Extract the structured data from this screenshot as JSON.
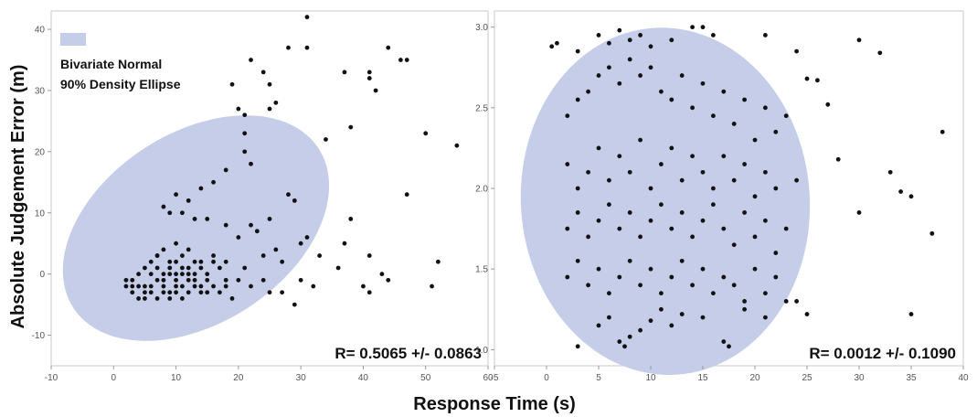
{
  "figure": {
    "ylabel": "Absolute Judgement Error (m)",
    "xlabel": "Response Time (s)",
    "legend": {
      "line1": "Bivariate Normal",
      "line2": "90% Density Ellipse",
      "color": "#c5cde8"
    }
  },
  "chart_data": [
    {
      "type": "scatter",
      "panel": "left",
      "xlim": [
        -10,
        60
      ],
      "ylim": [
        -15,
        43
      ],
      "xticks": [
        -10,
        0,
        10,
        20,
        30,
        40,
        50,
        60
      ],
      "yticks": [
        -10,
        0,
        10,
        20,
        30,
        40
      ],
      "annotation": "R= 0.5065 +/- 0.0863",
      "ellipse": {
        "label": "Bivariate Normal 90% Density Ellipse",
        "color": "#c5cde8"
      },
      "point_color": "#111111",
      "grid": false,
      "points": [
        [
          31,
          42
        ],
        [
          28,
          37
        ],
        [
          31,
          37
        ],
        [
          44,
          37
        ],
        [
          46,
          35
        ],
        [
          47,
          35
        ],
        [
          22,
          35
        ],
        [
          24,
          33
        ],
        [
          37,
          33
        ],
        [
          41,
          33
        ],
        [
          41,
          32
        ],
        [
          25,
          31
        ],
        [
          19,
          31
        ],
        [
          42,
          30
        ],
        [
          20,
          27
        ],
        [
          26,
          28
        ],
        [
          25,
          27
        ],
        [
          21,
          26
        ],
        [
          21,
          23
        ],
        [
          38,
          24
        ],
        [
          34,
          22
        ],
        [
          50,
          23
        ],
        [
          55,
          21
        ],
        [
          21,
          20
        ],
        [
          22,
          18
        ],
        [
          18,
          17
        ],
        [
          14,
          14
        ],
        [
          16,
          15
        ],
        [
          10,
          13
        ],
        [
          12,
          12
        ],
        [
          8,
          11
        ],
        [
          9,
          10
        ],
        [
          11,
          10
        ],
        [
          13,
          9
        ],
        [
          15,
          9
        ],
        [
          18,
          8
        ],
        [
          20,
          6
        ],
        [
          22,
          8
        ],
        [
          23,
          7
        ],
        [
          25,
          9
        ],
        [
          26,
          4
        ],
        [
          28,
          13
        ],
        [
          29,
          12
        ],
        [
          31,
          6
        ],
        [
          10,
          5
        ],
        [
          12,
          4
        ],
        [
          7,
          3
        ],
        [
          14,
          2
        ],
        [
          16,
          3
        ],
        [
          18,
          2
        ],
        [
          21,
          1
        ],
        [
          24,
          3
        ],
        [
          27,
          2
        ],
        [
          30,
          5
        ],
        [
          33,
          3
        ],
        [
          36,
          1
        ],
        [
          38,
          9
        ],
        [
          47,
          13
        ],
        [
          37,
          5
        ],
        [
          41,
          3
        ],
        [
          43,
          0
        ],
        [
          44,
          -1
        ],
        [
          52,
          2
        ],
        [
          51,
          -2
        ],
        [
          40,
          -2
        ],
        [
          41,
          -3
        ],
        [
          30,
          -1
        ],
        [
          29,
          -5
        ],
        [
          27,
          -3
        ],
        [
          32,
          -2
        ],
        [
          2,
          -2
        ],
        [
          3,
          -1
        ],
        [
          4,
          -2
        ],
        [
          5,
          -3
        ],
        [
          6,
          -2
        ],
        [
          7,
          -1
        ],
        [
          8,
          -2
        ],
        [
          9,
          -3
        ],
        [
          10,
          -1
        ],
        [
          11,
          -2
        ],
        [
          12,
          -3
        ],
        [
          13,
          -1
        ],
        [
          14,
          -2
        ],
        [
          15,
          -3
        ],
        [
          6,
          0
        ],
        [
          7,
          1
        ],
        [
          8,
          0
        ],
        [
          9,
          1
        ],
        [
          10,
          2
        ],
        [
          11,
          1
        ],
        [
          12,
          0
        ],
        [
          13,
          2
        ],
        [
          5,
          -4
        ],
        [
          6,
          -3
        ],
        [
          7,
          -4
        ],
        [
          8,
          -3
        ],
        [
          9,
          -4
        ],
        [
          10,
          -3
        ],
        [
          11,
          -4
        ],
        [
          4,
          0
        ],
        [
          5,
          1
        ],
        [
          6,
          2
        ],
        [
          7,
          3
        ],
        [
          8,
          4
        ],
        [
          9,
          2
        ],
        [
          10,
          0
        ],
        [
          11,
          3
        ],
        [
          12,
          1
        ],
        [
          13,
          0
        ],
        [
          14,
          1
        ],
        [
          15,
          0
        ],
        [
          16,
          2
        ],
        [
          17,
          1
        ],
        [
          18,
          -1
        ],
        [
          3,
          -3
        ],
        [
          4,
          -4
        ],
        [
          2,
          -1
        ],
        [
          3,
          -2
        ],
        [
          5,
          -2
        ],
        [
          8,
          -1
        ],
        [
          9,
          0
        ],
        [
          10,
          -2
        ],
        [
          11,
          0
        ],
        [
          12,
          -1
        ],
        [
          13,
          -2
        ],
        [
          14,
          -3
        ],
        [
          15,
          -1
        ],
        [
          16,
          -2
        ],
        [
          17,
          -3
        ],
        [
          18,
          -2
        ],
        [
          19,
          -4
        ],
        [
          20,
          -1
        ],
        [
          22,
          -2
        ],
        [
          24,
          -1
        ],
        [
          25,
          -3
        ]
      ]
    },
    {
      "type": "scatter",
      "panel": "right",
      "xlim": [
        -5,
        40
      ],
      "ylim": [
        0.9,
        3.1
      ],
      "xticks": [
        -5,
        0,
        5,
        10,
        15,
        20,
        25,
        30,
        35,
        40
      ],
      "yticks": [
        1.0,
        1.5,
        2.0,
        2.5,
        3.0
      ],
      "annotation": "R= 0.0012 +/- 0.1090",
      "ellipse": {
        "label": "Bivariate Normal 90% Density Ellipse",
        "color": "#c5cde8"
      },
      "point_color": "#111111",
      "grid": false,
      "points": [
        [
          0.5,
          2.88
        ],
        [
          1,
          2.9
        ],
        [
          3,
          2.85
        ],
        [
          5,
          2.95
        ],
        [
          6,
          2.9
        ],
        [
          7,
          2.98
        ],
        [
          8,
          2.92
        ],
        [
          9,
          2.95
        ],
        [
          10,
          2.88
        ],
        [
          12,
          2.92
        ],
        [
          14,
          3.0
        ],
        [
          15,
          3.0
        ],
        [
          16,
          2.95
        ],
        [
          21,
          2.95
        ],
        [
          24,
          2.85
        ],
        [
          25,
          2.68
        ],
        [
          26,
          2.67
        ],
        [
          30,
          2.92
        ],
        [
          32,
          2.84
        ],
        [
          27,
          2.52
        ],
        [
          33,
          2.1
        ],
        [
          35,
          1.95
        ],
        [
          34,
          1.98
        ],
        [
          38,
          2.35
        ],
        [
          37,
          1.72
        ],
        [
          30,
          1.85
        ],
        [
          28,
          2.18
        ],
        [
          25,
          1.22
        ],
        [
          35,
          1.22
        ],
        [
          2,
          2.45
        ],
        [
          3,
          2.55
        ],
        [
          4,
          2.6
        ],
        [
          5,
          2.7
        ],
        [
          6,
          2.75
        ],
        [
          7,
          2.65
        ],
        [
          8,
          2.8
        ],
        [
          9,
          2.7
        ],
        [
          10,
          2.75
        ],
        [
          11,
          2.6
        ],
        [
          12,
          2.55
        ],
        [
          13,
          2.7
        ],
        [
          14,
          2.5
        ],
        [
          15,
          2.65
        ],
        [
          16,
          2.45
        ],
        [
          17,
          2.6
        ],
        [
          18,
          2.4
        ],
        [
          19,
          2.55
        ],
        [
          20,
          2.3
        ],
        [
          21,
          2.5
        ],
        [
          22,
          2.35
        ],
        [
          23,
          2.45
        ],
        [
          2,
          2.15
        ],
        [
          3,
          2.0
        ],
        [
          4,
          2.1
        ],
        [
          5,
          2.25
        ],
        [
          6,
          2.05
        ],
        [
          7,
          2.2
        ],
        [
          8,
          2.1
        ],
        [
          9,
          2.3
        ],
        [
          10,
          2.0
        ],
        [
          11,
          2.15
        ],
        [
          12,
          2.25
        ],
        [
          13,
          2.05
        ],
        [
          14,
          2.2
        ],
        [
          15,
          2.1
        ],
        [
          16,
          2.0
        ],
        [
          17,
          2.2
        ],
        [
          18,
          2.05
        ],
        [
          19,
          2.15
        ],
        [
          20,
          1.95
        ],
        [
          21,
          2.1
        ],
        [
          22,
          2.0
        ],
        [
          24,
          2.05
        ],
        [
          2,
          1.75
        ],
        [
          3,
          1.85
        ],
        [
          4,
          1.7
        ],
        [
          5,
          1.8
        ],
        [
          6,
          1.9
        ],
        [
          7,
          1.75
        ],
        [
          8,
          1.85
        ],
        [
          9,
          1.7
        ],
        [
          10,
          1.8
        ],
        [
          11,
          1.9
        ],
        [
          12,
          1.75
        ],
        [
          13,
          1.85
        ],
        [
          14,
          1.7
        ],
        [
          15,
          1.8
        ],
        [
          16,
          1.9
        ],
        [
          17,
          1.75
        ],
        [
          18,
          1.65
        ],
        [
          19,
          1.85
        ],
        [
          20,
          1.7
        ],
        [
          21,
          1.8
        ],
        [
          22,
          1.6
        ],
        [
          23,
          1.75
        ],
        [
          2,
          1.45
        ],
        [
          3,
          1.55
        ],
        [
          4,
          1.4
        ],
        [
          5,
          1.5
        ],
        [
          6,
          1.35
        ],
        [
          7,
          1.45
        ],
        [
          8,
          1.55
        ],
        [
          9,
          1.4
        ],
        [
          10,
          1.5
        ],
        [
          11,
          1.35
        ],
        [
          12,
          1.45
        ],
        [
          13,
          1.55
        ],
        [
          14,
          1.4
        ],
        [
          15,
          1.5
        ],
        [
          16,
          1.35
        ],
        [
          17,
          1.45
        ],
        [
          18,
          1.4
        ],
        [
          19,
          1.3
        ],
        [
          20,
          1.5
        ],
        [
          21,
          1.35
        ],
        [
          22,
          1.45
        ],
        [
          23,
          1.3
        ],
        [
          3,
          1.02
        ],
        [
          5,
          1.15
        ],
        [
          6,
          1.2
        ],
        [
          7,
          1.05
        ],
        [
          7.5,
          1.02
        ],
        [
          8,
          1.08
        ],
        [
          9,
          1.12
        ],
        [
          10,
          1.18
        ],
        [
          11,
          1.25
        ],
        [
          12,
          1.15
        ],
        [
          13,
          1.22
        ],
        [
          15,
          1.2
        ],
        [
          17,
          1.05
        ],
        [
          17.5,
          1.02
        ],
        [
          19,
          1.25
        ],
        [
          21,
          1.2
        ],
        [
          24,
          1.3
        ]
      ]
    }
  ]
}
